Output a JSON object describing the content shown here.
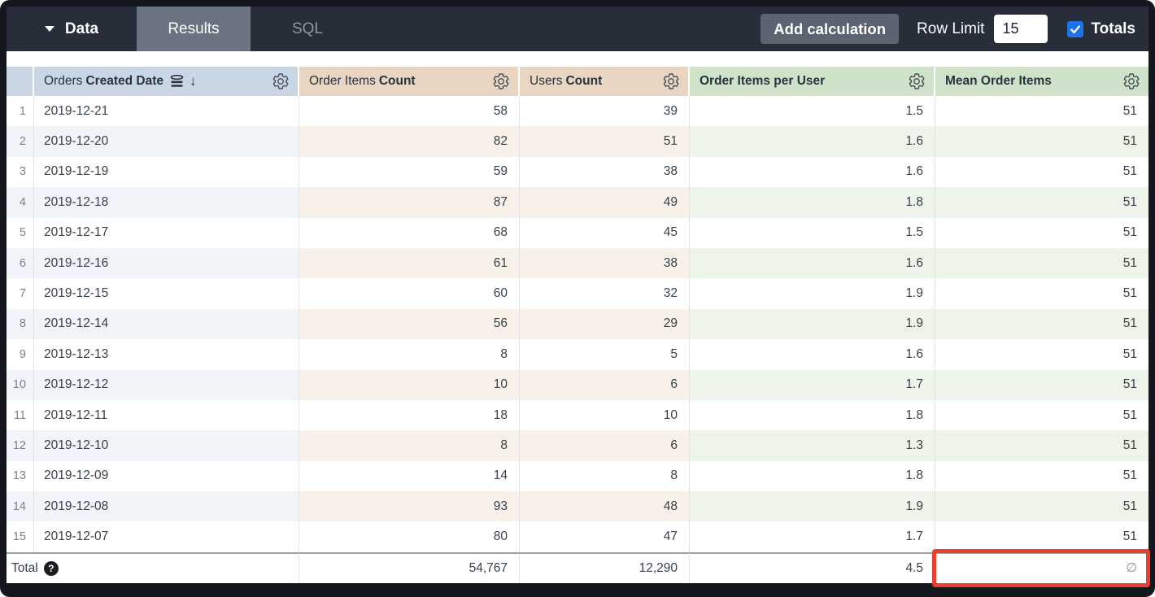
{
  "topbar": {
    "data_label": "Data",
    "results_label": "Results",
    "sql_label": "SQL",
    "add_calculation_label": "Add calculation",
    "row_limit_label": "Row Limit",
    "row_limit_value": "15",
    "totals_label": "Totals",
    "totals_checked": true
  },
  "table": {
    "columns": [
      {
        "id": "orders_created_date",
        "label_prefix": "Orders",
        "label_bold": "Created Date",
        "group": "dimension",
        "sorted": "desc"
      },
      {
        "id": "order_items_count",
        "label_prefix": "Order Items",
        "label_bold": "Count",
        "group": "measure"
      },
      {
        "id": "users_count",
        "label_prefix": "Users",
        "label_bold": "Count",
        "group": "measure"
      },
      {
        "id": "order_items_per_user",
        "label_prefix": "",
        "label_bold": "Order Items per User",
        "group": "table_calculation"
      },
      {
        "id": "mean_order_items",
        "label_prefix": "",
        "label_bold": "Mean Order Items",
        "group": "table_calculation"
      }
    ],
    "rows": [
      {
        "n": "1",
        "date": "2019-12-21",
        "order_items_count": "58",
        "users_count": "39",
        "order_items_per_user": "1.5",
        "mean_order_items": "51"
      },
      {
        "n": "2",
        "date": "2019-12-20",
        "order_items_count": "82",
        "users_count": "51",
        "order_items_per_user": "1.6",
        "mean_order_items": "51"
      },
      {
        "n": "3",
        "date": "2019-12-19",
        "order_items_count": "59",
        "users_count": "38",
        "order_items_per_user": "1.6",
        "mean_order_items": "51"
      },
      {
        "n": "4",
        "date": "2019-12-18",
        "order_items_count": "87",
        "users_count": "49",
        "order_items_per_user": "1.8",
        "mean_order_items": "51"
      },
      {
        "n": "5",
        "date": "2019-12-17",
        "order_items_count": "68",
        "users_count": "45",
        "order_items_per_user": "1.5",
        "mean_order_items": "51"
      },
      {
        "n": "6",
        "date": "2019-12-16",
        "order_items_count": "61",
        "users_count": "38",
        "order_items_per_user": "1.6",
        "mean_order_items": "51"
      },
      {
        "n": "7",
        "date": "2019-12-15",
        "order_items_count": "60",
        "users_count": "32",
        "order_items_per_user": "1.9",
        "mean_order_items": "51"
      },
      {
        "n": "8",
        "date": "2019-12-14",
        "order_items_count": "56",
        "users_count": "29",
        "order_items_per_user": "1.9",
        "mean_order_items": "51"
      },
      {
        "n": "9",
        "date": "2019-12-13",
        "order_items_count": "8",
        "users_count": "5",
        "order_items_per_user": "1.6",
        "mean_order_items": "51"
      },
      {
        "n": "10",
        "date": "2019-12-12",
        "order_items_count": "10",
        "users_count": "6",
        "order_items_per_user": "1.7",
        "mean_order_items": "51"
      },
      {
        "n": "11",
        "date": "2019-12-11",
        "order_items_count": "18",
        "users_count": "10",
        "order_items_per_user": "1.8",
        "mean_order_items": "51"
      },
      {
        "n": "12",
        "date": "2019-12-10",
        "order_items_count": "8",
        "users_count": "6",
        "order_items_per_user": "1.3",
        "mean_order_items": "51"
      },
      {
        "n": "13",
        "date": "2019-12-09",
        "order_items_count": "14",
        "users_count": "8",
        "order_items_per_user": "1.8",
        "mean_order_items": "51"
      },
      {
        "n": "14",
        "date": "2019-12-08",
        "order_items_count": "93",
        "users_count": "48",
        "order_items_per_user": "1.9",
        "mean_order_items": "51"
      },
      {
        "n": "15",
        "date": "2019-12-07",
        "order_items_count": "80",
        "users_count": "47",
        "order_items_per_user": "1.7",
        "mean_order_items": "51"
      }
    ],
    "total": {
      "label": "Total",
      "help_icon": "question-circle-icon",
      "order_items_count": "54,767",
      "users_count": "12,290",
      "order_items_per_user": "4.5",
      "mean_order_items": "∅"
    }
  },
  "annotation": {
    "type": "highlight-box",
    "target": "total-mean-order-items-cell",
    "color": "#e8402f"
  },
  "colors": {
    "topbar_bg": "#272e3a",
    "active_tab_bg": "#6b7380",
    "checkbox_blue": "#1a73e8",
    "header_dimension": "#c8d7e3",
    "header_measure": "#e9d6c2",
    "header_table_calc": "#cfe2ca",
    "stripe_dimension": "#f1f4f8",
    "stripe_measure": "#f8f1e9",
    "stripe_table_calc": "#edf4ea",
    "annotation_red": "#e8402f"
  },
  "icons": {
    "caret": "caret-down-icon",
    "settings": "gear-icon",
    "sorted_field": "sorted-field-icon",
    "sort_direction": "arrow-down-icon",
    "checkmark": "checkmark-icon",
    "total_help": "question-circle-icon",
    "empty_value": "empty-set-glyph"
  }
}
